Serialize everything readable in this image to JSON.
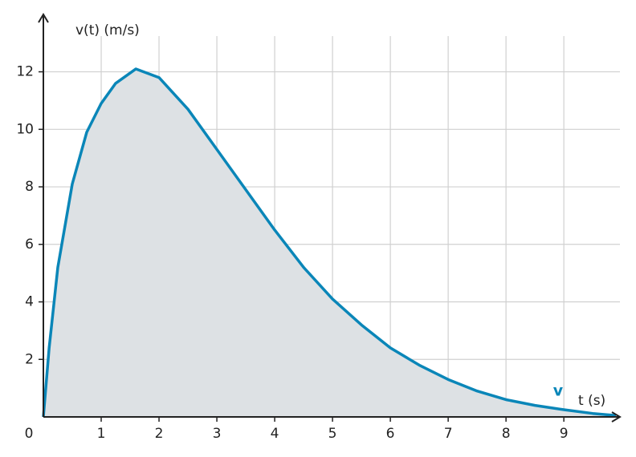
{
  "chart_data": {
    "type": "line",
    "x_label": "t (s)",
    "y_label": "v(t) (m/s)",
    "x": [
      0,
      0.1,
      0.25,
      0.5,
      0.75,
      1,
      1.25,
      1.6,
      2,
      2.5,
      3,
      3.5,
      4,
      4.5,
      5,
      5.5,
      6,
      6.5,
      7,
      7.5,
      8,
      8.5,
      9,
      9.5,
      9.9
    ],
    "series": [
      {
        "name": "v",
        "color": "#0a86b8",
        "values": [
          0,
          2.4,
          5.2,
          8.1,
          9.9,
          10.9,
          11.6,
          12.1,
          11.8,
          10.7,
          9.3,
          7.9,
          6.5,
          5.2,
          4.1,
          3.2,
          2.4,
          1.8,
          1.3,
          0.9,
          0.6,
          0.4,
          0.25,
          0.12,
          0.05
        ]
      }
    ],
    "fill_color": "#dde1e4",
    "xlim": [
      0,
      9.97
    ],
    "ylim": [
      0,
      13.8
    ],
    "xticks": [
      0,
      1,
      2,
      3,
      4,
      5,
      6,
      7,
      8,
      9
    ],
    "yticks": [
      2,
      4,
      6,
      8,
      10,
      12
    ],
    "grid": true
  }
}
